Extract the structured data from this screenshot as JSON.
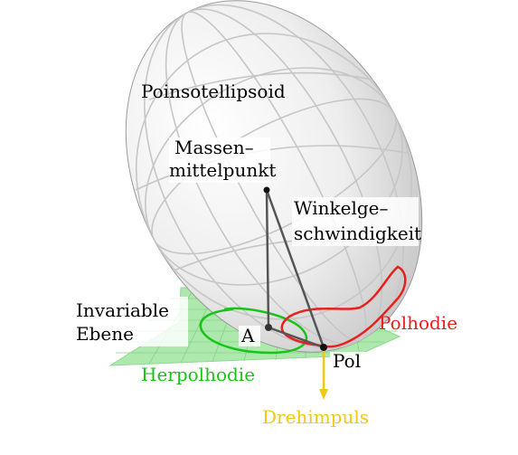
{
  "labels": {
    "ellipsoid": "Poinsotellipsoid",
    "center_line1": "Massen–",
    "center_line2": "mittelpunkt",
    "omega_line1": "Winkelge–",
    "omega_line2": "schwindigkeit",
    "plane_line1": "Invariable",
    "plane_line2": "Ebene",
    "point_a": "A",
    "polhodie": "Polhodie",
    "pol": "Pol",
    "herpolhodie": "Herpolhodie",
    "drehimpuls": "Drehimpuls"
  },
  "colors": {
    "polhodie": "#e8201e",
    "herpolhodie": "#18c41a",
    "drehimpuls": "#f0c814",
    "plane": "#a8f0a8",
    "plane_grid": "#8ad88a",
    "ellipsoid_fill": "#ededed",
    "ellipsoid_grid": "#c9c9c9",
    "axis_line": "#444444"
  }
}
